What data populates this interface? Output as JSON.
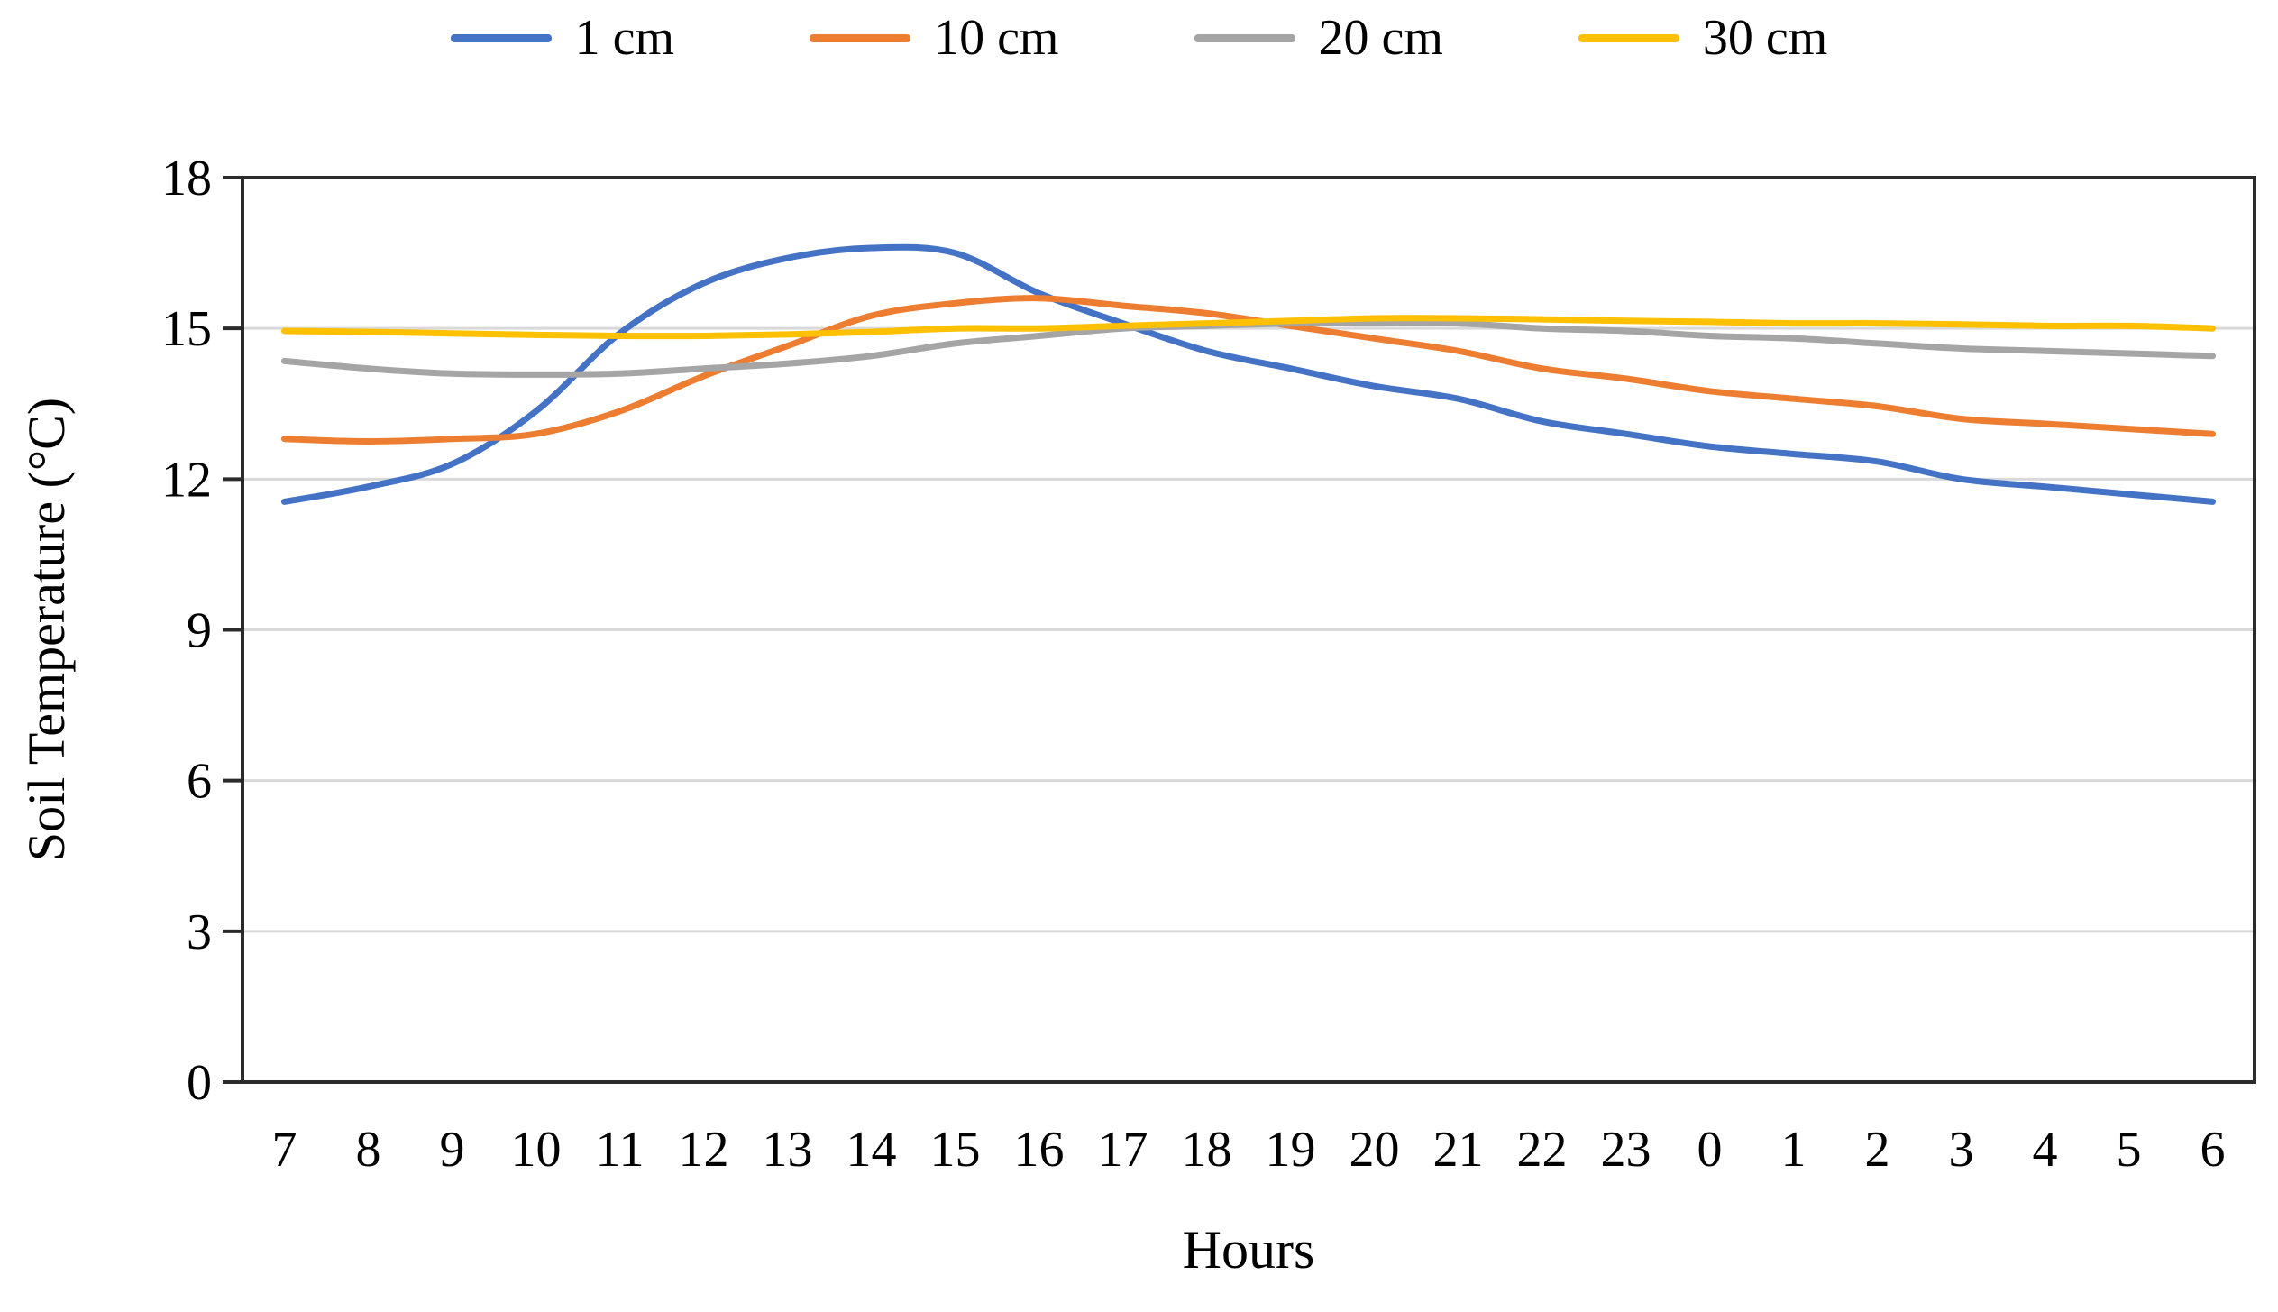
{
  "chart_data": {
    "type": "line",
    "title": "",
    "xlabel": "Hours",
    "ylabel": "Soil Temperature (°C)",
    "ylim": [
      0,
      18
    ],
    "grid": "horizontal",
    "legend_position": "top",
    "categories": [
      "7",
      "8",
      "9",
      "10",
      "11",
      "12",
      "13",
      "14",
      "15",
      "16",
      "17",
      "18",
      "19",
      "20",
      "21",
      "22",
      "23",
      "0",
      "1",
      "2",
      "3",
      "4",
      "5",
      "6"
    ],
    "y_ticks": [
      0,
      3,
      6,
      9,
      12,
      15,
      18
    ],
    "series": [
      {
        "name": "1 cm",
        "color": "#4472C4",
        "values": [
          11.55,
          11.85,
          12.3,
          13.35,
          14.9,
          15.9,
          16.4,
          16.6,
          16.5,
          15.7,
          15.1,
          14.55,
          14.2,
          13.85,
          13.6,
          13.15,
          12.9,
          12.65,
          12.5,
          12.35,
          12.0,
          11.85,
          11.7,
          11.55
        ]
      },
      {
        "name": "10 cm",
        "color": "#ED7D31",
        "values": [
          12.8,
          12.75,
          12.8,
          12.9,
          13.35,
          14.05,
          14.65,
          15.25,
          15.5,
          15.6,
          15.45,
          15.3,
          15.05,
          14.8,
          14.55,
          14.2,
          14.0,
          13.75,
          13.6,
          13.45,
          13.2,
          13.1,
          13.0,
          12.9
        ]
      },
      {
        "name": "20 cm",
        "color": "#A5A5A5",
        "values": [
          14.35,
          14.2,
          14.1,
          14.08,
          14.1,
          14.2,
          14.3,
          14.45,
          14.7,
          14.85,
          15.0,
          15.05,
          15.1,
          15.1,
          15.1,
          15.0,
          14.95,
          14.85,
          14.8,
          14.7,
          14.6,
          14.55,
          14.5,
          14.45
        ]
      },
      {
        "name": "30 cm",
        "color": "#FFC000",
        "values": [
          14.95,
          14.93,
          14.9,
          14.87,
          14.85,
          14.85,
          14.88,
          14.93,
          15.0,
          15.0,
          15.05,
          15.1,
          15.15,
          15.2,
          15.2,
          15.18,
          15.15,
          15.13,
          15.1,
          15.1,
          15.08,
          15.05,
          15.05,
          15.0
        ]
      }
    ]
  },
  "style": {
    "grid_color": "#d9d9d9",
    "axis_color": "#2b2b2b",
    "tick_color": "#2b2b2b",
    "text_color": "#000000",
    "background": "#ffffff"
  }
}
